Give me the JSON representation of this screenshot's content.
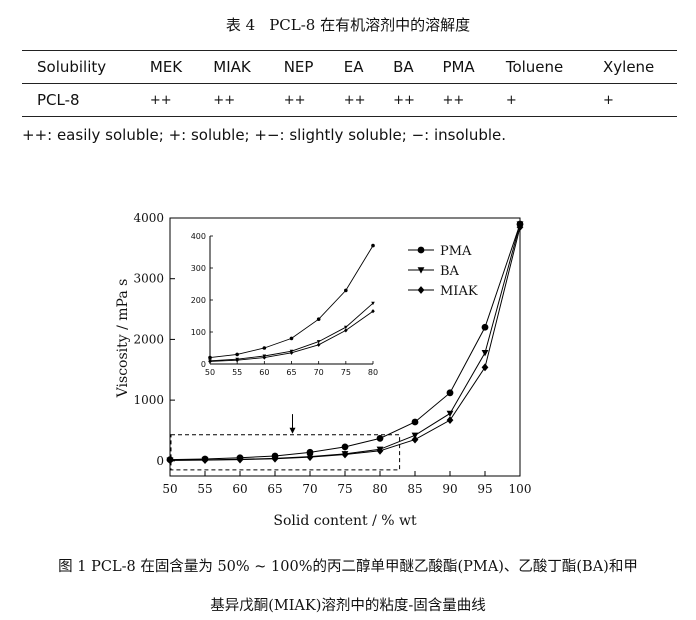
{
  "table_caption": {
    "number": "表 4",
    "title": "PCL-8 在有机溶剂中的溶解度"
  },
  "table": {
    "headers": [
      "Solubility",
      "MEK",
      "MIAK",
      "NEP",
      "EA",
      "BA",
      "PMA",
      "Toluene",
      "Xylene"
    ],
    "rows": [
      [
        "PCL-8",
        "++",
        "++",
        "++",
        "++",
        "++",
        "++",
        "+",
        "+"
      ]
    ]
  },
  "table_footnote": "++: easily soluble; +: soluble; +−: slightly soluble; −: insoluble.",
  "figure_caption": {
    "line1": "图 1 PCL-8 在固含量为 50% ~ 100%的丙二醇单甲醚乙酸酯(PMA)、乙酸丁酯(BA)和甲",
    "line2": "基异戊酮(MIAK)溶剂中的粘度-固含量曲线"
  },
  "chart_data": [
    {
      "type": "line",
      "xlabel": "Solid content / % wt",
      "ylabel": "Viscosity / mPa s",
      "x": [
        50,
        55,
        60,
        65,
        70,
        75,
        80,
        85,
        90,
        95,
        100
      ],
      "xlim": [
        50,
        100
      ],
      "ylim": [
        -250,
        4000
      ],
      "xticks": [
        50,
        55,
        60,
        65,
        70,
        75,
        80,
        85,
        90,
        95,
        100
      ],
      "yticks": [
        0,
        1000,
        2000,
        3000,
        4000
      ],
      "legend_position": "top-right",
      "series": [
        {
          "name": "PMA",
          "marker": "circle",
          "values": [
            20,
            30,
            50,
            80,
            140,
            230,
            370,
            640,
            1120,
            2200,
            3900
          ]
        },
        {
          "name": "BA",
          "marker": "triangle-down",
          "values": [
            10,
            15,
            25,
            40,
            70,
            115,
            190,
            420,
            780,
            1780,
            3900
          ]
        },
        {
          "name": "MIAK",
          "marker": "diamond",
          "values": [
            8,
            12,
            20,
            35,
            60,
            105,
            165,
            350,
            670,
            1540,
            3850
          ]
        }
      ]
    },
    {
      "type": "line",
      "role": "inset",
      "x": [
        50,
        55,
        60,
        65,
        70,
        75,
        80
      ],
      "xlim": [
        50,
        80
      ],
      "ylim": [
        0,
        400
      ],
      "xticks": [
        50,
        55,
        60,
        65,
        70,
        75,
        80
      ],
      "yticks": [
        0,
        100,
        200,
        300,
        400
      ],
      "series": [
        {
          "ref": "PMA",
          "values": [
            20,
            30,
            50,
            80,
            140,
            230,
            370
          ]
        },
        {
          "ref": "BA",
          "values": [
            10,
            15,
            25,
            40,
            70,
            115,
            190
          ]
        },
        {
          "ref": "MIAK",
          "values": [
            8,
            12,
            20,
            35,
            60,
            105,
            165
          ]
        }
      ]
    }
  ]
}
